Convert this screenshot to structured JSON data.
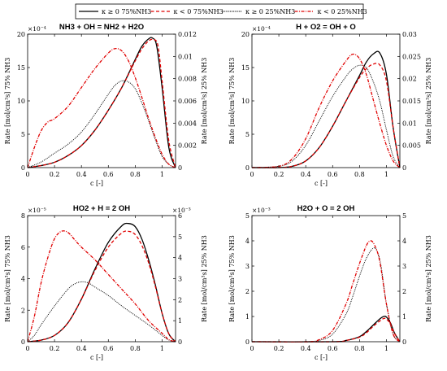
{
  "legend": {
    "placement": "top-center",
    "entries": [
      {
        "label": "κ ≥ 0 75%NH3",
        "color": "#000000",
        "dash": "solid"
      },
      {
        "label": "κ < 0 75%NH3",
        "color": "#e00000",
        "dash": "dashed"
      },
      {
        "label": "κ ≥ 0 25%NH3",
        "color": "#000000",
        "dash": "dotted"
      },
      {
        "label": "κ < 0 25%NH3",
        "color": "#e00000",
        "dash": "dashdot"
      }
    ]
  },
  "axes_labels": {
    "left_ylabel": "Rate [mol/cm³s] 75% NH3",
    "right_ylabel": "Rate [mol/cm³s] 25% NH3",
    "xlabel": "c [-]"
  },
  "chart_data": [
    {
      "type": "line",
      "title": "NH3 + OH = NH2 + H2O",
      "xlabel": "c [-]",
      "xlim": [
        0,
        1.1
      ],
      "xticks": [
        0,
        0.2,
        0.4,
        0.6,
        0.8,
        1
      ],
      "left": {
        "ylim": [
          0,
          20
        ],
        "ticks": [
          0,
          5,
          10,
          15,
          20
        ],
        "exponent": "×10⁻⁴"
      },
      "right": {
        "ylim": [
          0,
          0.012
        ],
        "ticks": [
          0,
          0.002,
          0.004,
          0.006,
          0.008,
          0.01,
          0.012
        ],
        "exponent": ""
      },
      "grid": false,
      "series": [
        {
          "legend_index": 0,
          "axis": "left",
          "x": [
            0,
            0.1,
            0.2,
            0.3,
            0.4,
            0.5,
            0.6,
            0.7,
            0.8,
            0.85,
            0.9,
            0.93,
            0.96,
            1.0,
            1.05,
            1.1
          ],
          "y": [
            0,
            0.3,
            0.8,
            1.8,
            3.3,
            5.6,
            8.6,
            12.0,
            16.2,
            18.2,
            19.3,
            19.4,
            18.2,
            12.0,
            3.0,
            0
          ]
        },
        {
          "legend_index": 1,
          "axis": "left",
          "x": [
            0,
            0.1,
            0.2,
            0.3,
            0.4,
            0.5,
            0.6,
            0.7,
            0.8,
            0.85,
            0.9,
            0.94,
            0.97,
            1.0,
            1.05,
            1.1
          ],
          "y": [
            0,
            0.3,
            0.8,
            1.8,
            3.3,
            5.6,
            8.6,
            12.0,
            16.0,
            17.8,
            19.0,
            19.2,
            18.2,
            13.0,
            4.0,
            0
          ]
        },
        {
          "legend_index": 2,
          "axis": "right",
          "x": [
            0,
            0.1,
            0.2,
            0.3,
            0.4,
            0.5,
            0.6,
            0.65,
            0.7,
            0.75,
            0.8,
            0.85,
            0.9,
            0.95,
            1.0,
            1.05,
            1.1
          ],
          "y": [
            0,
            0.0005,
            0.0013,
            0.0021,
            0.0032,
            0.0048,
            0.0066,
            0.0074,
            0.0078,
            0.0077,
            0.0071,
            0.0058,
            0.0042,
            0.0025,
            0.001,
            0.0003,
            0
          ]
        },
        {
          "legend_index": 3,
          "axis": "right",
          "x": [
            0,
            0.05,
            0.1,
            0.15,
            0.2,
            0.3,
            0.4,
            0.5,
            0.6,
            0.65,
            0.7,
            0.75,
            0.8,
            0.85,
            0.9,
            0.95,
            1.0,
            1.05,
            1.1
          ],
          "y": [
            0,
            0.0018,
            0.0033,
            0.0041,
            0.0044,
            0.0055,
            0.0072,
            0.0089,
            0.0103,
            0.0107,
            0.0105,
            0.0096,
            0.0081,
            0.0063,
            0.0044,
            0.0027,
            0.0012,
            0.0003,
            0
          ]
        }
      ]
    },
    {
      "type": "line",
      "title": "H + O2 = OH + O",
      "xlabel": "c [-]",
      "xlim": [
        0,
        1.1
      ],
      "xticks": [
        0,
        0.2,
        0.4,
        0.6,
        0.8,
        1
      ],
      "left": {
        "ylim": [
          0,
          20
        ],
        "ticks": [
          0,
          5,
          10,
          15,
          20
        ],
        "exponent": "×10⁻⁴"
      },
      "right": {
        "ylim": [
          0,
          0.03
        ],
        "ticks": [
          0,
          0.005,
          0.01,
          0.015,
          0.02,
          0.025,
          0.03
        ],
        "exponent": ""
      },
      "grid": false,
      "series": [
        {
          "legend_index": 0,
          "axis": "left",
          "x": [
            0,
            0.2,
            0.3,
            0.4,
            0.5,
            0.6,
            0.7,
            0.8,
            0.85,
            0.9,
            0.95,
            1.0,
            1.05,
            1.1
          ],
          "y": [
            0,
            0,
            0.2,
            1.0,
            3.0,
            6.2,
            10.0,
            13.8,
            15.8,
            17.0,
            17.2,
            14.0,
            6.0,
            0
          ]
        },
        {
          "legend_index": 1,
          "axis": "left",
          "x": [
            0,
            0.2,
            0.3,
            0.4,
            0.5,
            0.6,
            0.7,
            0.8,
            0.85,
            0.9,
            0.95,
            1.0,
            1.05,
            1.1
          ],
          "y": [
            0,
            0,
            0.2,
            1.0,
            3.0,
            6.2,
            10.0,
            13.5,
            14.8,
            15.5,
            15.4,
            13.0,
            6.0,
            0
          ]
        },
        {
          "legend_index": 2,
          "axis": "right",
          "x": [
            0,
            0.2,
            0.3,
            0.4,
            0.5,
            0.6,
            0.7,
            0.75,
            0.8,
            0.85,
            0.9,
            0.95,
            1.0,
            1.05,
            1.1
          ],
          "y": [
            0,
            0.0003,
            0.0015,
            0.005,
            0.0105,
            0.016,
            0.0205,
            0.0222,
            0.023,
            0.0225,
            0.0195,
            0.015,
            0.0085,
            0.0025,
            0
          ]
        },
        {
          "legend_index": 3,
          "axis": "right",
          "x": [
            0,
            0.2,
            0.3,
            0.4,
            0.5,
            0.6,
            0.7,
            0.75,
            0.8,
            0.85,
            0.9,
            0.95,
            1.0,
            1.05,
            1.1
          ],
          "y": [
            0,
            0.0003,
            0.002,
            0.0065,
            0.0135,
            0.0195,
            0.024,
            0.0255,
            0.0245,
            0.021,
            0.0155,
            0.01,
            0.005,
            0.0015,
            0
          ]
        }
      ]
    },
    {
      "type": "line",
      "title": "HO2 + H = 2 OH",
      "xlabel": "c [-]",
      "xlim": [
        0,
        1.1
      ],
      "xticks": [
        0,
        0.2,
        0.4,
        0.6,
        0.8,
        1
      ],
      "left": {
        "ylim": [
          0,
          8
        ],
        "ticks": [
          0,
          2,
          4,
          6,
          8
        ],
        "exponent": "×10⁻⁵"
      },
      "right": {
        "ylim": [
          0,
          6
        ],
        "ticks": [
          0,
          1,
          2,
          3,
          4,
          5,
          6
        ],
        "exponent": "×10⁻³"
      },
      "grid": false,
      "series": [
        {
          "legend_index": 0,
          "axis": "left",
          "x": [
            0,
            0.1,
            0.2,
            0.3,
            0.4,
            0.5,
            0.6,
            0.7,
            0.75,
            0.8,
            0.85,
            0.9,
            0.95,
            1.0,
            1.05,
            1.1
          ],
          "y": [
            0,
            0.1,
            0.4,
            1.2,
            2.7,
            4.6,
            6.3,
            7.35,
            7.5,
            7.3,
            6.5,
            5.2,
            3.6,
            1.8,
            0.5,
            0
          ]
        },
        {
          "legend_index": 1,
          "axis": "left",
          "x": [
            0,
            0.1,
            0.2,
            0.3,
            0.4,
            0.5,
            0.6,
            0.7,
            0.75,
            0.8,
            0.85,
            0.9,
            0.95,
            1.0,
            1.05,
            1.1
          ],
          "y": [
            0,
            0.1,
            0.4,
            1.2,
            2.7,
            4.5,
            6.0,
            6.9,
            7.0,
            6.8,
            6.1,
            5.0,
            3.5,
            1.8,
            0.5,
            0
          ]
        },
        {
          "legend_index": 2,
          "axis": "right",
          "x": [
            0,
            0.05,
            0.1,
            0.2,
            0.3,
            0.35,
            0.4,
            0.45,
            0.5,
            0.6,
            0.7,
            0.8,
            0.9,
            1.0,
            1.05,
            1.1
          ],
          "y": [
            0,
            0.3,
            0.8,
            1.7,
            2.5,
            2.75,
            2.85,
            2.8,
            2.6,
            2.2,
            1.7,
            1.25,
            0.8,
            0.3,
            0.08,
            0
          ]
        },
        {
          "legend_index": 3,
          "axis": "right",
          "x": [
            0,
            0.05,
            0.1,
            0.15,
            0.2,
            0.25,
            0.3,
            0.35,
            0.4,
            0.5,
            0.6,
            0.7,
            0.8,
            0.9,
            1.0,
            1.05,
            1.1
          ],
          "y": [
            0,
            1.2,
            2.8,
            4.0,
            4.9,
            5.25,
            5.2,
            4.85,
            4.5,
            3.9,
            3.2,
            2.5,
            1.8,
            1.0,
            0.4,
            0.1,
            0
          ]
        }
      ]
    },
    {
      "type": "line",
      "title": "H2O + O = 2 OH",
      "xlabel": "c [-]",
      "xlim": [
        0,
        1.1
      ],
      "xticks": [
        0,
        0.2,
        0.4,
        0.6,
        0.8,
        1
      ],
      "left": {
        "ylim": [
          0,
          5
        ],
        "ticks": [
          0,
          1,
          2,
          3,
          4,
          5
        ],
        "exponent": "×10⁻³"
      },
      "right": {
        "ylim": [
          0,
          5
        ],
        "ticks": [
          0,
          1,
          2,
          3,
          4,
          5
        ],
        "exponent": ""
      },
      "grid": false,
      "series": [
        {
          "legend_index": 0,
          "axis": "left",
          "x": [
            0,
            0.6,
            0.7,
            0.8,
            0.85,
            0.9,
            0.95,
            0.98,
            1.0,
            1.03,
            1.06,
            1.1
          ],
          "y": [
            0,
            0,
            0.05,
            0.2,
            0.4,
            0.65,
            0.9,
            1.0,
            0.98,
            0.75,
            0.35,
            0
          ]
        },
        {
          "legend_index": 1,
          "axis": "left",
          "x": [
            0,
            0.6,
            0.7,
            0.8,
            0.85,
            0.9,
            0.95,
            0.98,
            1.0,
            1.03,
            1.06,
            1.1
          ],
          "y": [
            0,
            0,
            0.05,
            0.18,
            0.35,
            0.6,
            0.82,
            0.92,
            0.9,
            0.7,
            0.33,
            0
          ]
        },
        {
          "legend_index": 2,
          "axis": "right",
          "x": [
            0,
            0.4,
            0.5,
            0.6,
            0.7,
            0.75,
            0.8,
            0.85,
            0.9,
            0.93,
            0.96,
            1.0,
            1.05,
            1.1
          ],
          "y": [
            0,
            0,
            0.05,
            0.3,
            1.1,
            1.8,
            2.6,
            3.3,
            3.7,
            3.6,
            3.0,
            1.5,
            0.3,
            0
          ]
        },
        {
          "legend_index": 3,
          "axis": "right",
          "x": [
            0,
            0.4,
            0.5,
            0.6,
            0.7,
            0.75,
            0.8,
            0.85,
            0.88,
            0.91,
            0.95,
            1.0,
            1.05,
            1.1
          ],
          "y": [
            0,
            0,
            0.08,
            0.45,
            1.5,
            2.3,
            3.1,
            3.8,
            4.0,
            3.85,
            3.2,
            1.5,
            0.3,
            0
          ]
        }
      ]
    }
  ]
}
